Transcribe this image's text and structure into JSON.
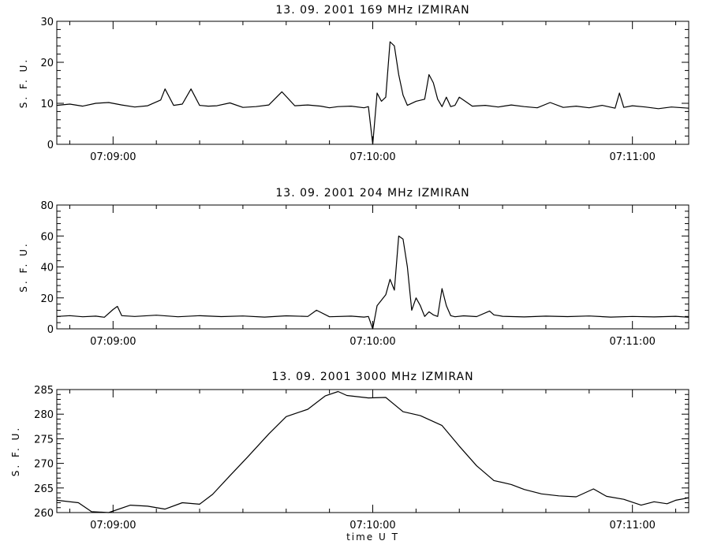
{
  "chart_data": [
    {
      "type": "line",
      "title": "13.  09.  2001    169  MHz    IZMIRAN",
      "ylabel": "S. F. U.",
      "xlabel": "",
      "xlim": [
        "07:08:47",
        "07:11:13"
      ],
      "ylim": [
        0,
        30
      ],
      "yticks": [
        "0",
        "10",
        "20",
        "30"
      ],
      "xticks": [
        "07:09:00",
        "07:10:00",
        "07:11:00"
      ],
      "series": [
        {
          "name": "",
          "x": [
            "07:08:47",
            "07:08:50",
            "07:08:53",
            "07:08:56",
            "07:08:59",
            "07:09:02",
            "07:09:05",
            "07:09:08",
            "07:09:11",
            "07:09:12",
            "07:09:14",
            "07:09:16",
            "07:09:18",
            "07:09:20",
            "07:09:22",
            "07:09:24",
            "07:09:27",
            "07:09:30",
            "07:09:33",
            "07:09:36",
            "07:09:39",
            "07:09:42",
            "07:09:45",
            "07:09:48",
            "07:09:50",
            "07:09:52",
            "07:09:55",
            "07:09:58",
            "07:09:59",
            "07:10:00",
            "07:10:01",
            "07:10:02",
            "07:10:03",
            "07:10:04",
            "07:10:05",
            "07:10:06",
            "07:10:07",
            "07:10:08",
            "07:10:10",
            "07:10:12",
            "07:10:13",
            "07:10:14",
            "07:10:15",
            "07:10:16",
            "07:10:17",
            "07:10:18",
            "07:10:19",
            "07:10:20",
            "07:10:23",
            "07:10:26",
            "07:10:29",
            "07:10:32",
            "07:10:35",
            "07:10:38",
            "07:10:41",
            "07:10:44",
            "07:10:47",
            "07:10:50",
            "07:10:53",
            "07:10:56",
            "07:10:57",
            "07:10:58",
            "07:11:00",
            "07:11:03",
            "07:11:06",
            "07:11:09",
            "07:11:13"
          ],
          "y": [
            9.5,
            9.8,
            9.3,
            10.0,
            10.2,
            9.6,
            9.1,
            9.4,
            10.8,
            13.5,
            9.5,
            9.8,
            13.5,
            9.5,
            9.3,
            9.4,
            10.1,
            9.0,
            9.2,
            9.6,
            12.8,
            9.4,
            9.6,
            9.3,
            8.9,
            9.2,
            9.3,
            8.9,
            9.2,
            0.0,
            12.5,
            10.5,
            11.5,
            25.0,
            24.0,
            17.0,
            12.0,
            9.5,
            10.5,
            11.0,
            17.0,
            15.0,
            11.0,
            9.2,
            11.5,
            9.2,
            9.5,
            11.5,
            9.3,
            9.5,
            9.1,
            9.6,
            9.2,
            8.9,
            10.2,
            9.0,
            9.3,
            8.9,
            9.5,
            8.8,
            12.5,
            9.0,
            9.4,
            9.1,
            8.7,
            9.1,
            8.8
          ]
        }
      ]
    },
    {
      "type": "line",
      "title": "13.  09.  2001    204  MHz    IZMIRAN",
      "ylabel": "S. F. U.",
      "xlabel": "",
      "xlim": [
        "07:08:47",
        "07:11:13"
      ],
      "ylim": [
        0,
        80
      ],
      "yticks": [
        "0",
        "20",
        "40",
        "60",
        "80"
      ],
      "xticks": [
        "07:09:00",
        "07:10:00",
        "07:11:00"
      ],
      "series": [
        {
          "name": "",
          "x": [
            "07:08:47",
            "07:08:50",
            "07:08:53",
            "07:08:56",
            "07:08:58",
            "07:09:00",
            "07:09:01",
            "07:09:02",
            "07:09:05",
            "07:09:10",
            "07:09:15",
            "07:09:20",
            "07:09:25",
            "07:09:30",
            "07:09:35",
            "07:09:40",
            "07:09:45",
            "07:09:47",
            "07:09:50",
            "07:09:55",
            "07:09:58",
            "07:09:59",
            "07:10:00",
            "07:10:01",
            "07:10:03",
            "07:10:04",
            "07:10:05",
            "07:10:06",
            "07:10:07",
            "07:10:08",
            "07:10:09",
            "07:10:10",
            "07:10:11",
            "07:10:12",
            "07:10:13",
            "07:10:14",
            "07:10:15",
            "07:10:16",
            "07:10:17",
            "07:10:18",
            "07:10:19",
            "07:10:21",
            "07:10:24",
            "07:10:27",
            "07:10:28",
            "07:10:30",
            "07:10:35",
            "07:10:40",
            "07:10:45",
            "07:10:50",
            "07:10:55",
            "07:11:00",
            "07:11:05",
            "07:11:10",
            "07:11:13"
          ],
          "y": [
            8.0,
            8.5,
            7.8,
            8.2,
            7.5,
            12.5,
            14.5,
            8.5,
            8.0,
            8.8,
            7.8,
            8.5,
            7.9,
            8.3,
            7.6,
            8.4,
            8.0,
            12.0,
            7.8,
            8.2,
            7.6,
            8.0,
            0.0,
            15.0,
            22.0,
            32.0,
            25.0,
            60.0,
            58.0,
            40.0,
            12.0,
            20.0,
            15.0,
            8.0,
            11.0,
            9.0,
            8.0,
            26.0,
            15.0,
            8.5,
            7.8,
            8.4,
            7.9,
            11.5,
            9.0,
            8.1,
            7.7,
            8.2,
            7.9,
            8.3,
            7.6,
            8.0,
            7.7,
            8.1,
            7.5
          ]
        }
      ]
    },
    {
      "type": "line",
      "title": "13.  09.  2001     3000  MHz    IZMIRAN",
      "ylabel": "S. F. U.",
      "xlabel": "time   U T",
      "xlim": [
        "07:08:47",
        "07:11:13"
      ],
      "ylim": [
        260,
        285
      ],
      "yticks": [
        "260",
        "265",
        "270",
        "275",
        "280",
        "285"
      ],
      "xticks": [
        "07:09:00",
        "07:10:00",
        "07:11:00"
      ],
      "series": [
        {
          "name": "",
          "x": [
            "07:08:47",
            "07:08:52",
            "07:08:55",
            "07:08:59",
            "07:09:04",
            "07:09:08",
            "07:09:12",
            "07:09:16",
            "07:09:20",
            "07:09:23",
            "07:09:27",
            "07:09:31",
            "07:09:36",
            "07:09:40",
            "07:09:45",
            "07:09:49",
            "07:09:52",
            "07:09:54",
            "07:09:59",
            "07:10:03",
            "07:10:07",
            "07:10:11",
            "07:10:16",
            "07:10:20",
            "07:10:24",
            "07:10:28",
            "07:10:32",
            "07:10:35",
            "07:10:39",
            "07:10:43",
            "07:10:47",
            "07:10:51",
            "07:10:54",
            "07:10:58",
            "07:11:02",
            "07:11:05",
            "07:11:08",
            "07:11:10",
            "07:11:13"
          ],
          "y": [
            262.5,
            262.0,
            260.2,
            259.9,
            261.5,
            261.3,
            260.7,
            262.0,
            261.7,
            263.7,
            267.5,
            271.2,
            276.0,
            279.5,
            281.0,
            283.7,
            284.6,
            283.8,
            283.3,
            283.4,
            280.5,
            279.7,
            277.7,
            273.5,
            269.5,
            266.5,
            265.7,
            264.7,
            263.8,
            263.4,
            263.2,
            264.8,
            263.3,
            262.7,
            261.5,
            262.2,
            261.8,
            262.5,
            263.0
          ]
        }
      ]
    }
  ]
}
